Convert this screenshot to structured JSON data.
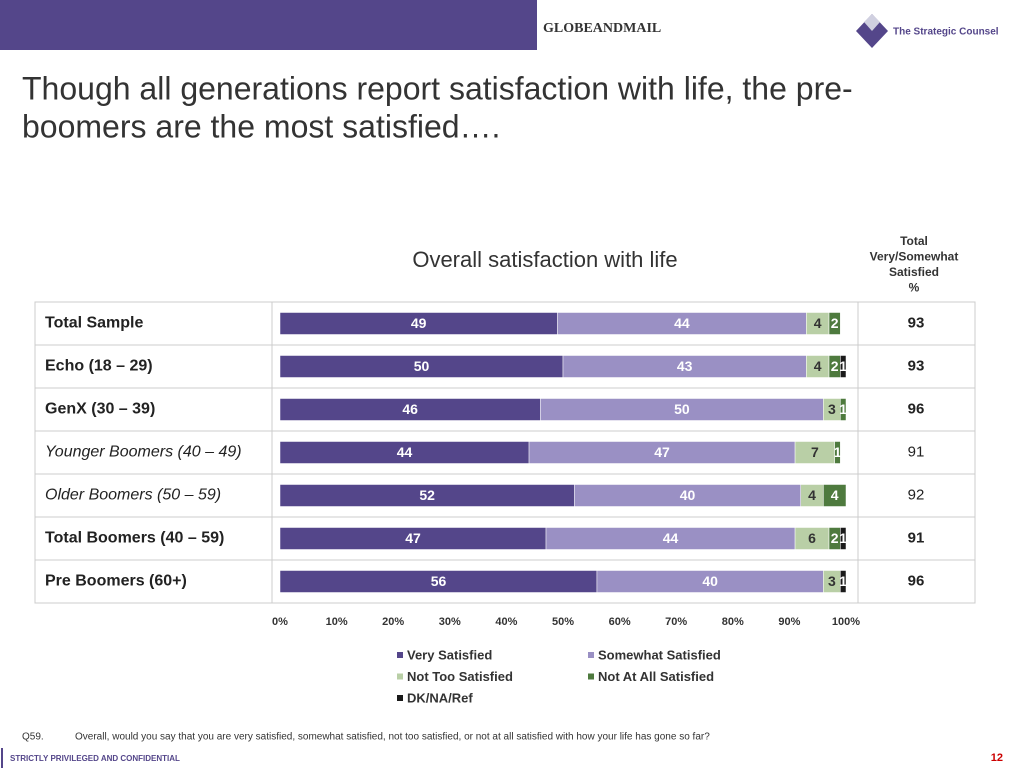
{
  "header": {
    "brand": "GLOBEANDMAIL",
    "company": "The Strategic Counsel",
    "headline": [
      "Though all generations report satisfaction with life, the pre-",
      "boomers are the most satisfied…."
    ]
  },
  "chart_data": {
    "type": "stacked_barh",
    "title": "Overall satisfaction with life",
    "categories": [
      "Total Sample",
      "Echo (18 – 29)",
      "GenX (30 – 39)",
      "Younger Boomers (40 – 49)",
      "Older Boomers (50 – 59)",
      "Total Boomers (40 – 59)",
      "Pre Boomers (60+)"
    ],
    "series": [
      {
        "name": "Very Satisfied",
        "color": "#54468a",
        "values": [
          49,
          50,
          46,
          44,
          52,
          47,
          56
        ]
      },
      {
        "name": "Somewhat Satisfied",
        "color": "#9a90c4",
        "values": [
          44,
          43,
          50,
          47,
          40,
          44,
          40
        ]
      },
      {
        "name": "Not Too Satisfied",
        "color": "#b9cfa6",
        "values": [
          4,
          4,
          3,
          7,
          4,
          6,
          3
        ]
      },
      {
        "name": "Not At All Satisfied",
        "color": "#4e7a3e",
        "values": [
          2,
          2,
          1,
          1,
          4,
          2,
          null
        ]
      },
      {
        "name": "DK/NA/Ref",
        "color": "#1a1a1a",
        "values": [
          null,
          1,
          null,
          null,
          null,
          1,
          1
        ]
      }
    ],
    "xlim": [
      0,
      100
    ],
    "xticks": [
      {
        "value": 0,
        "label": "0%"
      },
      {
        "value": 10,
        "label": "10%"
      },
      {
        "value": 20,
        "label": "20%"
      },
      {
        "value": 30,
        "label": "30%"
      },
      {
        "value": 40,
        "label": "40%"
      },
      {
        "value": 50,
        "label": "50%"
      },
      {
        "value": 60,
        "label": "60%"
      },
      {
        "value": 70,
        "label": "70%"
      },
      {
        "value": 80,
        "label": "80%"
      },
      {
        "value": 90,
        "label": "90%"
      },
      {
        "value": 100,
        "label": "100%"
      }
    ],
    "totals": {
      "heading": [
        "Total",
        "Very/Somewhat",
        "Satisfied",
        "%"
      ],
      "values": [
        93,
        93,
        96,
        91,
        92,
        91,
        96
      ]
    }
  },
  "footnote": {
    "id": "Q59.",
    "text": "Overall, would you say that you are very satisfied, somewhat satisfied, not too satisfied, or not at all satisfied with how your life has gone so far?"
  },
  "footer": {
    "notice": "STRICTLY PRIVILEGED AND CONFIDENTIAL",
    "page": "12"
  }
}
